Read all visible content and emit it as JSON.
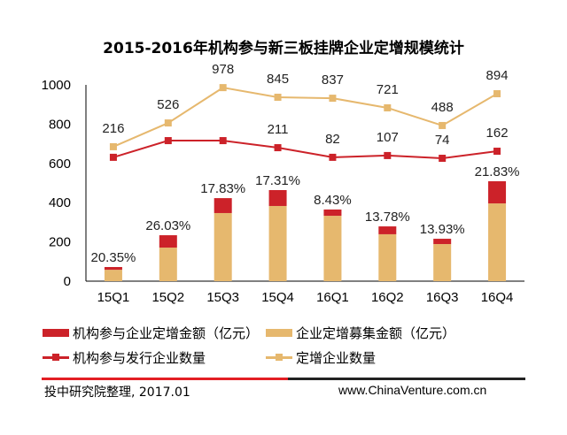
{
  "chart_data": {
    "type": "bar",
    "title": "2015-2016年机构参与新三板挂牌企业定增规模统计",
    "categories": [
      "15Q1",
      "15Q2",
      "15Q3",
      "15Q4",
      "16Q1",
      "16Q2",
      "16Q3",
      "16Q4"
    ],
    "ylim": [
      0,
      1000
    ],
    "yticks": [
      0,
      200,
      400,
      600,
      800,
      1000
    ],
    "xlabel": "",
    "ylabel": "",
    "grid": false,
    "legend_position": "bottom",
    "series": [
      {
        "name": "企业定增募集金额（亿元）",
        "kind": "bar-stack-base",
        "color": "#e6b86e",
        "values": [
          58,
          171,
          347,
          383,
          333,
          239,
          189,
          396
        ]
      },
      {
        "name": "机构参与企业定增金额（亿元）",
        "kind": "bar-stack-top",
        "color": "#cc2229",
        "values": [
          14,
          63,
          76,
          81,
          32,
          40,
          27,
          113
        ],
        "data_labels": [
          "20.35%",
          "26.03%",
          "17.83%",
          "17.31%",
          "8.43%",
          "13.78%",
          "13.93%",
          "21.83%"
        ]
      },
      {
        "name": "定增企业数量",
        "kind": "line",
        "color": "#e6b86e",
        "values": [
          216,
          526,
          978,
          845,
          837,
          721,
          488,
          894
        ],
        "plotted_on_primary_scale": [
          685,
          806,
          986,
          937,
          932,
          883,
          793,
          955
        ],
        "data_labels": [
          "216",
          "526",
          "978",
          "845",
          "837",
          "721",
          "488",
          "894"
        ]
      },
      {
        "name": "机构参与发行企业数量",
        "kind": "line",
        "color": "#cc2229",
        "values": [
          null,
          null,
          null,
          211,
          82,
          107,
          74,
          162
        ],
        "plotted_on_primary_scale": [
          631,
          716,
          716,
          680,
          631,
          640,
          626,
          662
        ],
        "data_labels": [
          "",
          "",
          "",
          "211",
          "82",
          "107",
          "74",
          "162"
        ]
      }
    ]
  },
  "legend": [
    {
      "label": "机构参与企业定增金额（亿元）",
      "type": "bar",
      "color": "#cc2229"
    },
    {
      "label": "企业定增募集金额（亿元）",
      "type": "bar",
      "color": "#e6b86e"
    },
    {
      "label": "机构参与发行企业数量",
      "type": "line",
      "color": "#cc2229"
    },
    {
      "label": "定增企业数量",
      "type": "line",
      "color": "#e6b86e"
    }
  ],
  "footer": {
    "source": "投中研究院整理, 2017.01",
    "website": "www.ChinaVenture.com.cn"
  }
}
